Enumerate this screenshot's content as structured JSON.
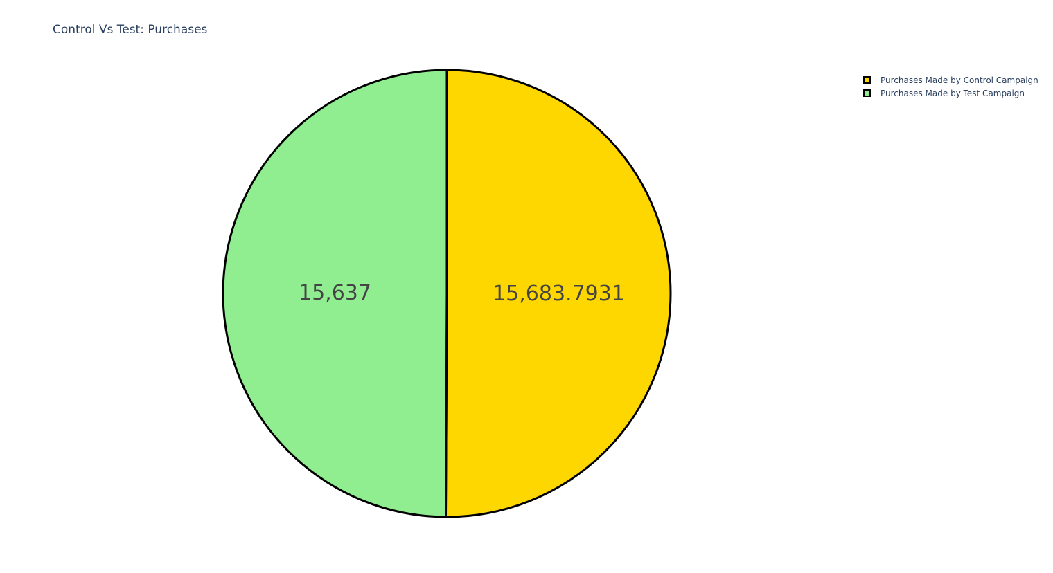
{
  "chart_data": {
    "type": "pie",
    "title": "Control Vs Test: Purchases",
    "labels": [
      "Purchases Made by Control Campaign",
      "Purchases Made by Test Campaign"
    ],
    "values": [
      15683.7931,
      15637
    ],
    "value_labels": [
      "15,683.7931",
      "15,637"
    ],
    "colors": [
      "#FFD700",
      "#90EE90"
    ],
    "line_color": "#000000",
    "legend_position": "top-right",
    "direction": "clockwise",
    "start": "top"
  }
}
